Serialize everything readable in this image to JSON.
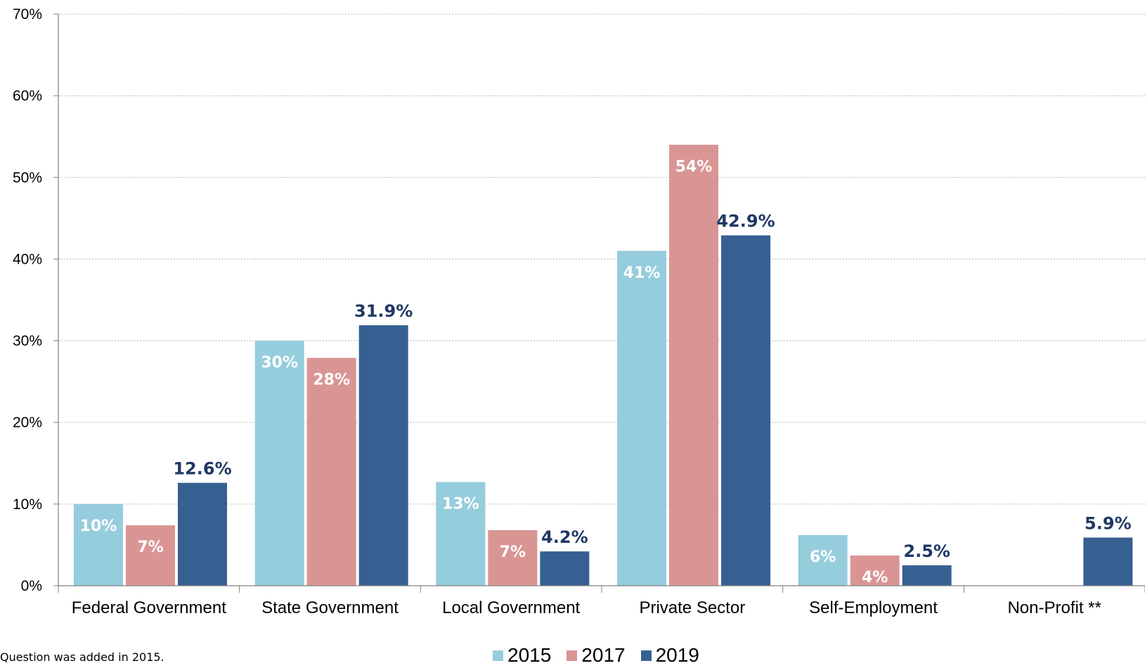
{
  "chart_data": {
    "type": "bar",
    "title": "",
    "xlabel": "",
    "ylabel": "",
    "ylim": [
      0,
      70
    ],
    "y_ticks": [
      "0%",
      "10%",
      "20%",
      "30%",
      "40%",
      "50%",
      "60%",
      "70%"
    ],
    "grid": "horizontal dotted",
    "legend_position": "bottom",
    "categories": [
      "Federal Government",
      "State Government",
      "Local Government",
      "Private Sector",
      "Self-Employment",
      "Non-Profit **"
    ],
    "series": [
      {
        "name": "2015",
        "color": "#96cddc",
        "values": [
          10,
          30,
          12.7,
          41,
          6.2,
          null
        ],
        "labels": [
          "10%",
          "30%",
          "13%",
          "41%",
          "6%",
          ""
        ]
      },
      {
        "name": "2017",
        "color": "#d99594",
        "values": [
          7.4,
          27.9,
          6.8,
          54,
          3.7,
          null
        ],
        "labels": [
          "7%",
          "28%",
          "7%",
          "54%",
          "4%",
          ""
        ]
      },
      {
        "name": "2019",
        "color": "#366092",
        "values": [
          12.6,
          31.9,
          4.2,
          42.9,
          2.5,
          5.9
        ],
        "labels": [
          "12.6%",
          "31.9%",
          "4.2%",
          "42.9%",
          "2.5%",
          "5.9%"
        ]
      }
    ]
  },
  "footnote": "Question was added in 2015."
}
